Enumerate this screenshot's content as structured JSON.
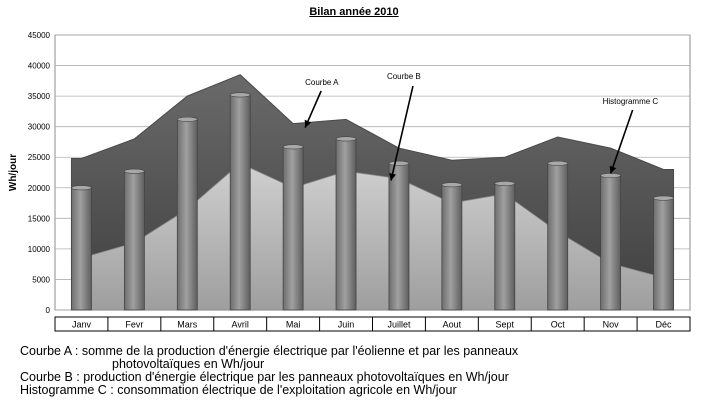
{
  "chart_data": {
    "type": "bar",
    "title": "Bilan année 2010",
    "ylabel": "Wh/jour",
    "xlabel": "",
    "ylim": [
      0,
      45000
    ],
    "yticks": [
      0,
      5000,
      10000,
      15000,
      20000,
      25000,
      30000,
      35000,
      40000,
      45000
    ],
    "categories": [
      "Janv",
      "Fevr",
      "Mars",
      "Avril",
      "Mai",
      "Juin",
      "Juillet",
      "Aout",
      "Sept",
      "Oct",
      "Nov",
      "Déc"
    ],
    "series": [
      {
        "name": "Histogramme C",
        "kind": "bar",
        "values": [
          20000,
          22700,
          31200,
          35200,
          26700,
          28000,
          24000,
          20500,
          20700,
          24000,
          22000,
          18300
        ]
      },
      {
        "name": "Courbe A",
        "kind": "area",
        "values": [
          24800,
          28000,
          35000,
          38500,
          30500,
          31200,
          26500,
          24500,
          25000,
          28300,
          26500,
          23000
        ]
      },
      {
        "name": "Courbe B",
        "kind": "area",
        "values": [
          8500,
          11000,
          16500,
          24000,
          20000,
          22700,
          21500,
          17500,
          19000,
          12800,
          7600,
          5300
        ]
      }
    ],
    "annotations": [
      {
        "text": "Courbe A",
        "points_to": "Mai"
      },
      {
        "text": "Courbe B",
        "points_to": "Juillet"
      },
      {
        "text": "Histogramme C",
        "points_to": "Nov"
      }
    ],
    "grid": true,
    "colors": {
      "curve_a": "#585858",
      "curve_b": "#b8b8b8",
      "bar": "#7a7a7a",
      "bar_light": "#9a9a9a",
      "bar_top": "#a6a6a6"
    }
  },
  "legend": {
    "line1": "Courbe A : somme de la production d'énergie électrique par l'éolienne et par les panneaux",
    "line1b": "photovoltaïques en Wh/jour",
    "line2": "Courbe B : production d'énergie électrique par les panneaux photovoltaïques en Wh/jour",
    "line3": "Histogramme C : consommation électrique de l'exploitation agricole en Wh/jour"
  }
}
